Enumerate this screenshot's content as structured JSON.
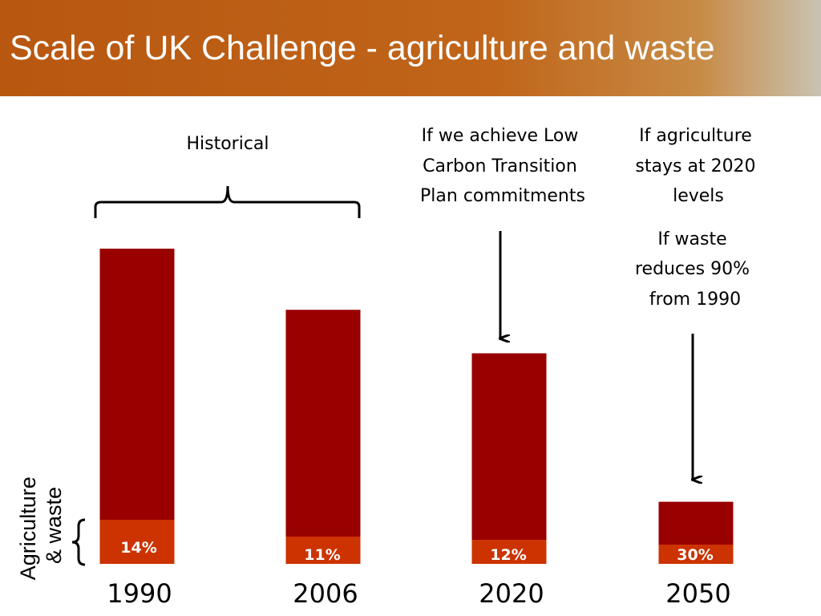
{
  "header": {
    "title": "Scale of UK Challenge - agriculture and waste"
  },
  "colors": {
    "total": "#990000",
    "ag_waste": "#cc3300",
    "header": "#b85710"
  },
  "chart_data": {
    "type": "bar",
    "title": "Scale of UK Challenge - agriculture and waste",
    "categories": [
      "1990",
      "2006",
      "2020",
      "2050"
    ],
    "series": [
      {
        "name": "Agriculture & waste",
        "share_labels": [
          "14%",
          "11%",
          "12%",
          "30%"
        ],
        "share_values": [
          14,
          11,
          12,
          30
        ]
      }
    ],
    "relative_totals": [
      100,
      80.6,
      66.8,
      19.7
    ],
    "annotations": {
      "historical": "Historical",
      "lctp": [
        "If we achieve Low",
        "Carbon Transition",
        "Plan commitments"
      ],
      "agri": [
        "If agriculture",
        "stays at 2020",
        "levels"
      ],
      "waste": [
        "If waste",
        "reduces 90%",
        "from 1990"
      ]
    },
    "ylabel_lines": [
      "Agriculture",
      "& waste"
    ],
    "grid": false
  }
}
